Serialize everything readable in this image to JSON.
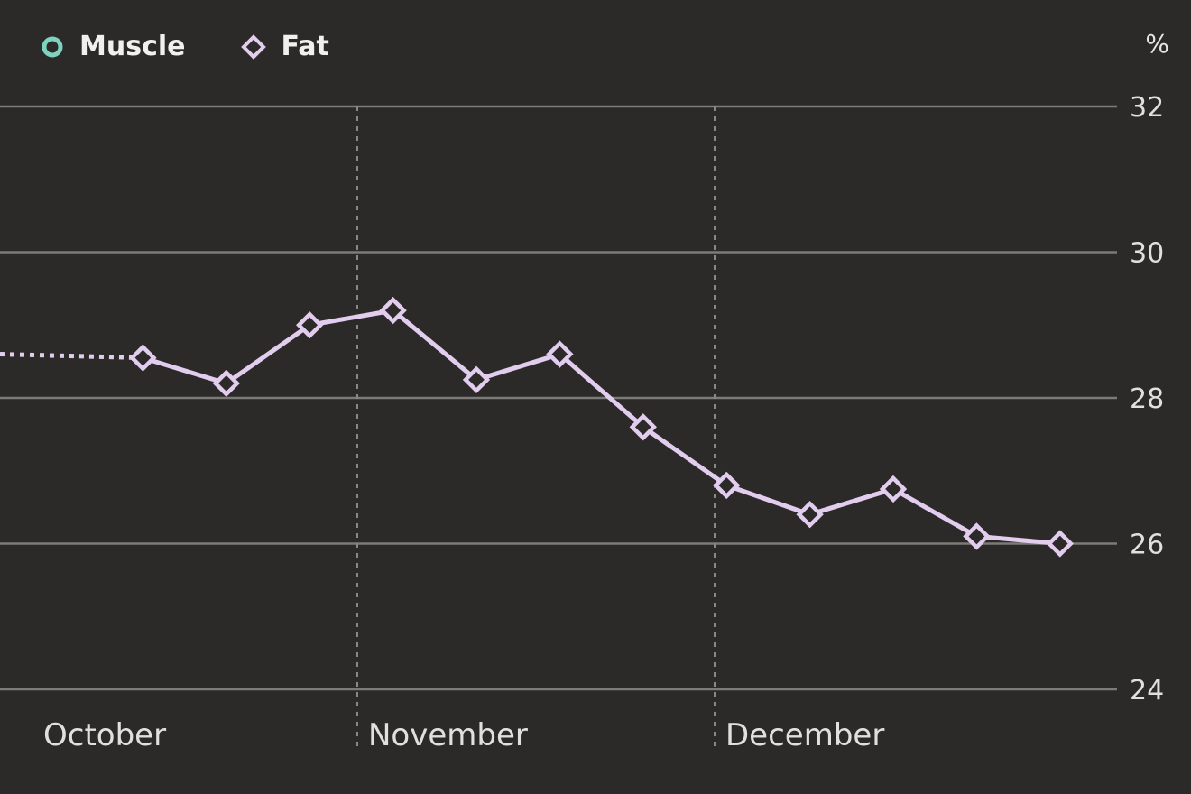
{
  "legend": [
    {
      "name": "Muscle",
      "color": "#7dd3c0",
      "marker": "circle"
    },
    {
      "name": "Fat",
      "color": "#e2cdef",
      "marker": "diamond"
    }
  ],
  "unit": "%",
  "chart_data": {
    "type": "line",
    "ylim": [
      24,
      32
    ],
    "yticks": [
      24,
      26,
      28,
      30,
      32
    ],
    "xlim": [
      0,
      1
    ],
    "months": [
      {
        "label": "October",
        "start": 0
      },
      {
        "label": "November",
        "start": 0.3
      },
      {
        "label": "December",
        "start": 0.6
      }
    ],
    "series": [
      {
        "name": "Fat",
        "color": "#e2cdef",
        "x": [
          0.12,
          0.19,
          0.26,
          0.33,
          0.4,
          0.47,
          0.54,
          0.61,
          0.68,
          0.75,
          0.82,
          0.89
        ],
        "values": [
          28.55,
          28.2,
          29.0,
          29.2,
          28.25,
          28.6,
          27.6,
          26.8,
          26.4,
          26.75,
          26.1,
          26.0
        ],
        "lead_in_value": 28.6
      }
    ],
    "grid": true
  }
}
